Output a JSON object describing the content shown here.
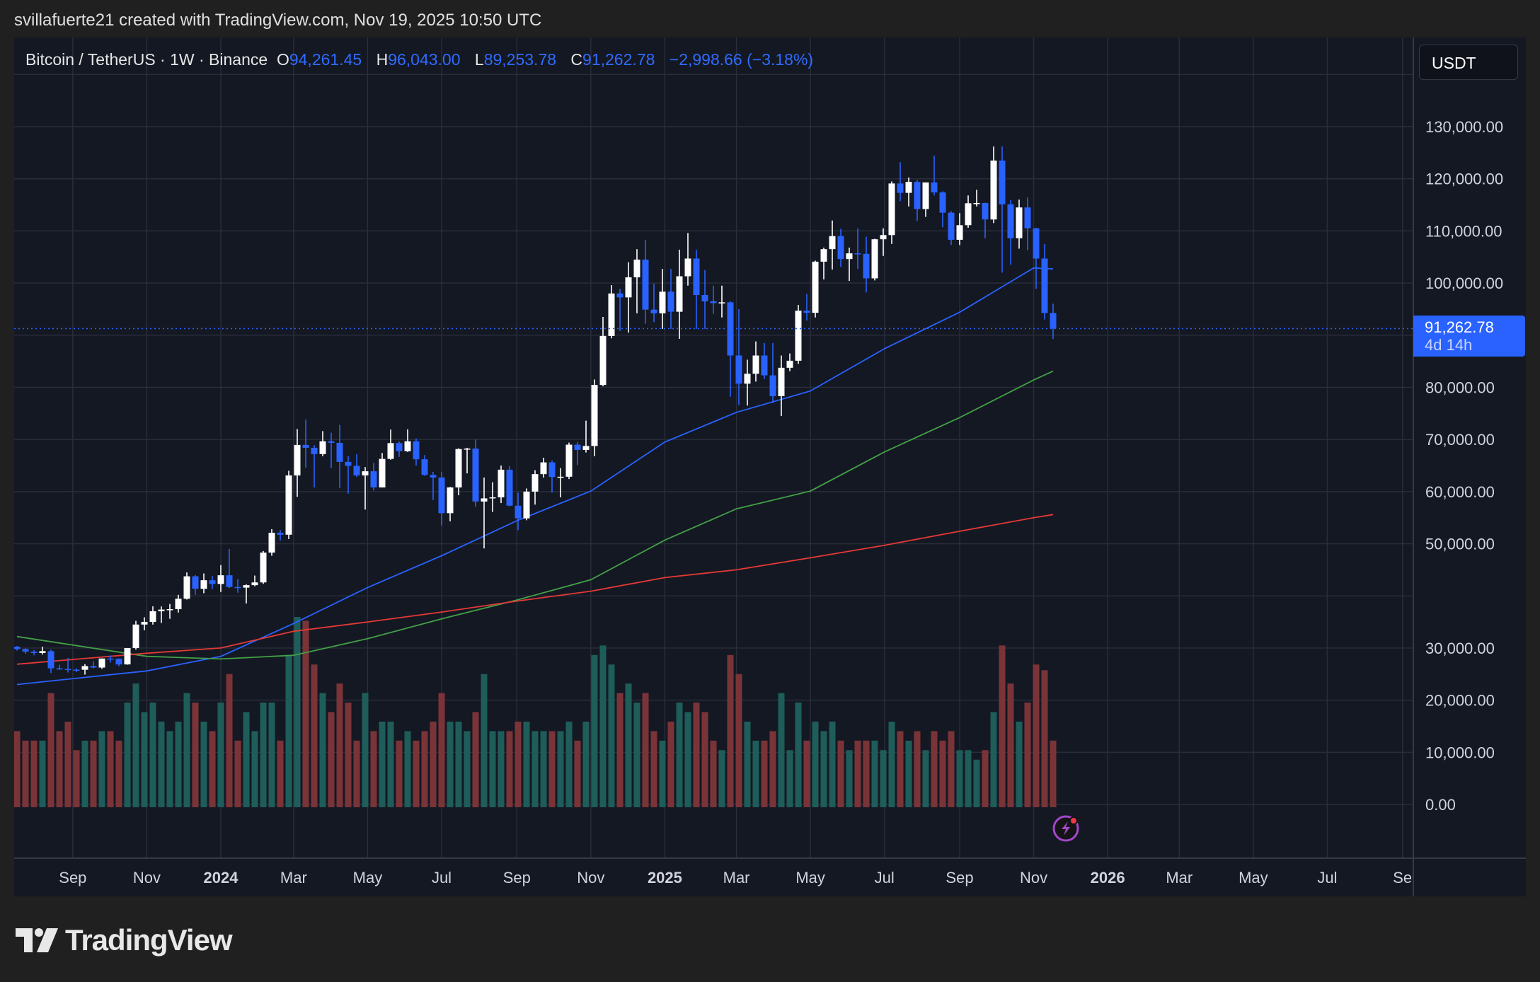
{
  "credit": "svillafuerte21 created with TradingView.com, Nov 19, 2025 10:50 UTC",
  "legend": {
    "symbol": "Bitcoin / TetherUS · 1W · Binance",
    "o_label": "O",
    "o": "94,261.45",
    "h_label": "H",
    "h": "96,043.00",
    "l_label": "L",
    "l": "89,253.78",
    "c_label": "C",
    "c": "91,262.78",
    "change": "−2,998.66 (−3.18%)"
  },
  "currency_button": "USDT",
  "last_price": {
    "value": "91,262.78",
    "countdown": "4d 14h",
    "price": 91262.78
  },
  "brand": "TradingView",
  "colors": {
    "up": "#ffffff",
    "down": "#2962ff",
    "vol_up": "#1e5d59",
    "vol_down": "#7a3438",
    "ma_fast": "#2962ff",
    "ma_mid": "#43a047",
    "ma_slow": "#e53935",
    "background": "#141823",
    "grid": "#2a2e3b"
  },
  "chart_data": {
    "type": "candlestick",
    "interval": "1W",
    "ylim": [
      0,
      140000
    ],
    "grid": true,
    "y_ticks": [
      0,
      10000,
      20000,
      30000,
      40000,
      50000,
      60000,
      70000,
      80000,
      90000,
      100000,
      110000,
      120000,
      130000
    ],
    "y_tick_labels": [
      "0.00",
      "10,000.00",
      "20,000.00",
      "30,000.00",
      "",
      "50,000.00",
      "60,000.00",
      "70,000.00",
      "80,000.00",
      "",
      "100,000.00",
      "110,000.00",
      "120,000.00",
      "130,000.00"
    ],
    "x_ticks": [
      {
        "date": "2023-09-01",
        "label": "Sep"
      },
      {
        "date": "2023-11-01",
        "label": "Nov"
      },
      {
        "date": "2024-01-01",
        "label": "2024",
        "bold": true
      },
      {
        "date": "2024-03-01",
        "label": "Mar"
      },
      {
        "date": "2024-05-01",
        "label": "May"
      },
      {
        "date": "2024-07-01",
        "label": "Jul"
      },
      {
        "date": "2024-09-01",
        "label": "Sep"
      },
      {
        "date": "2024-11-01",
        "label": "Nov"
      },
      {
        "date": "2025-01-01",
        "label": "2025",
        "bold": true
      },
      {
        "date": "2025-03-01",
        "label": "Mar"
      },
      {
        "date": "2025-05-01",
        "label": "May"
      },
      {
        "date": "2025-07-01",
        "label": "Jul"
      },
      {
        "date": "2025-09-01",
        "label": "Sep"
      },
      {
        "date": "2025-11-01",
        "label": "Nov"
      },
      {
        "date": "2026-01-01",
        "label": "2026",
        "bold": true
      },
      {
        "date": "2026-03-01",
        "label": "Mar"
      },
      {
        "date": "2026-05-01",
        "label": "May"
      },
      {
        "date": "2026-07-01",
        "label": "Jul"
      },
      {
        "date": "2026-09-01",
        "label": "Se"
      }
    ],
    "candle_fields": [
      "date",
      "open",
      "high",
      "low",
      "close",
      "volume_relative"
    ],
    "candles": [
      [
        "2023-07-17",
        30250,
        30400,
        29500,
        29800,
        40
      ],
      [
        "2023-07-24",
        29800,
        29950,
        28900,
        29300,
        35
      ],
      [
        "2023-07-31",
        29300,
        29600,
        28600,
        29050,
        35
      ],
      [
        "2023-08-07",
        29050,
        30250,
        28750,
        29400,
        35
      ],
      [
        "2023-08-14",
        29400,
        29700,
        25200,
        26100,
        60
      ],
      [
        "2023-08-21",
        26100,
        26800,
        25800,
        26000,
        40
      ],
      [
        "2023-08-28",
        26000,
        28100,
        25300,
        25850,
        45
      ],
      [
        "2023-09-04",
        25850,
        26100,
        25400,
        25830,
        30
      ],
      [
        "2023-09-11",
        25830,
        26900,
        24900,
        26530,
        35
      ],
      [
        "2023-09-18",
        26530,
        27450,
        26100,
        26250,
        35
      ],
      [
        "2023-09-25",
        26250,
        28000,
        26000,
        27980,
        40
      ],
      [
        "2023-10-02",
        27980,
        28600,
        27200,
        27930,
        40
      ],
      [
        "2023-10-09",
        27930,
        28000,
        26500,
        26850,
        35
      ],
      [
        "2023-10-16",
        26850,
        30000,
        26800,
        29990,
        55
      ],
      [
        "2023-10-23",
        29990,
        35200,
        29700,
        34500,
        65
      ],
      [
        "2023-10-30",
        34500,
        35900,
        33400,
        35000,
        50
      ],
      [
        "2023-11-06",
        35000,
        38000,
        34500,
        37050,
        55
      ],
      [
        "2023-11-13",
        37050,
        37980,
        34800,
        37370,
        45
      ],
      [
        "2023-11-20",
        37370,
        38450,
        35600,
        37450,
        40
      ],
      [
        "2023-11-27",
        37450,
        40200,
        36800,
        39450,
        45
      ],
      [
        "2023-12-04",
        39450,
        44500,
        39300,
        43750,
        60
      ],
      [
        "2023-12-11",
        43750,
        44000,
        40200,
        41350,
        55
      ],
      [
        "2023-12-18",
        41350,
        44300,
        40500,
        43000,
        45
      ],
      [
        "2023-12-25",
        43000,
        43800,
        41300,
        42280,
        40
      ],
      [
        "2024-01-01",
        42280,
        45900,
        40750,
        43950,
        55
      ],
      [
        "2024-01-08",
        43950,
        49000,
        41500,
        41700,
        70
      ],
      [
        "2024-01-15",
        41700,
        43200,
        40600,
        41580,
        35
      ],
      [
        "2024-01-22",
        41580,
        42200,
        38550,
        42050,
        50
      ],
      [
        "2024-01-29",
        42050,
        43900,
        41850,
        42580,
        40
      ],
      [
        "2024-02-05",
        42580,
        48600,
        42300,
        48300,
        55
      ],
      [
        "2024-02-12",
        48300,
        52800,
        47700,
        52100,
        55
      ],
      [
        "2024-02-19",
        52100,
        52600,
        50600,
        51730,
        35
      ],
      [
        "2024-02-26",
        51730,
        64000,
        50900,
        63100,
        80
      ],
      [
        "2024-03-04",
        63100,
        72000,
        59000,
        68950,
        100
      ],
      [
        "2024-03-11",
        68950,
        73800,
        64600,
        68400,
        98
      ],
      [
        "2024-03-18",
        68400,
        68900,
        60800,
        67200,
        75
      ],
      [
        "2024-03-25",
        67200,
        71600,
        66800,
        69650,
        60
      ],
      [
        "2024-04-01",
        69650,
        71300,
        64500,
        69350,
        50
      ],
      [
        "2024-04-08",
        69350,
        72800,
        60700,
        65700,
        65
      ],
      [
        "2024-04-15",
        65700,
        66800,
        59600,
        64940,
        55
      ],
      [
        "2024-04-22",
        64940,
        67200,
        62800,
        63100,
        35
      ],
      [
        "2024-04-29",
        63100,
        64700,
        56550,
        63900,
        60
      ],
      [
        "2024-05-06",
        63900,
        65500,
        60200,
        60800,
        40
      ],
      [
        "2024-05-13",
        60800,
        67400,
        60800,
        66270,
        45
      ],
      [
        "2024-05-20",
        66270,
        71900,
        66100,
        69300,
        45
      ],
      [
        "2024-05-27",
        69300,
        69600,
        66650,
        67750,
        35
      ],
      [
        "2024-06-03",
        67750,
        71950,
        67600,
        69650,
        40
      ],
      [
        "2024-06-10",
        69650,
        70200,
        65000,
        66200,
        35
      ],
      [
        "2024-06-17",
        66200,
        67000,
        63000,
        63200,
        40
      ],
      [
        "2024-06-24",
        63200,
        63800,
        58400,
        62700,
        45
      ],
      [
        "2024-07-01",
        62700,
        63800,
        53500,
        55860,
        60
      ],
      [
        "2024-07-08",
        55860,
        60900,
        54300,
        60800,
        45
      ],
      [
        "2024-07-15",
        60800,
        68300,
        59300,
        68160,
        45
      ],
      [
        "2024-07-22",
        68160,
        68400,
        63500,
        68250,
        40
      ],
      [
        "2024-07-29",
        68250,
        70000,
        57100,
        58100,
        50
      ],
      [
        "2024-08-05",
        58100,
        62700,
        49100,
        58700,
        70
      ],
      [
        "2024-08-12",
        58700,
        61800,
        56100,
        58900,
        40
      ],
      [
        "2024-08-19",
        58900,
        65000,
        57800,
        64200,
        40
      ],
      [
        "2024-08-26",
        64200,
        64900,
        57200,
        57300,
        40
      ],
      [
        "2024-09-02",
        57300,
        59800,
        52600,
        54870,
        45
      ],
      [
        "2024-09-09",
        54870,
        60600,
        54500,
        60000,
        45
      ],
      [
        "2024-09-16",
        60000,
        64100,
        57500,
        63350,
        40
      ],
      [
        "2024-09-23",
        63350,
        66500,
        62700,
        65600,
        40
      ],
      [
        "2024-09-30",
        65600,
        66000,
        59800,
        62800,
        40
      ],
      [
        "2024-10-07",
        62800,
        64500,
        58900,
        62850,
        40
      ],
      [
        "2024-10-14",
        62850,
        69400,
        62400,
        69000,
        45
      ],
      [
        "2024-10-21",
        69000,
        69500,
        65100,
        68000,
        35
      ],
      [
        "2024-10-28",
        68000,
        73600,
        67500,
        68750,
        45
      ],
      [
        "2024-11-04",
        68750,
        81500,
        66800,
        80450,
        80
      ],
      [
        "2024-11-11",
        80450,
        93500,
        80200,
        89850,
        85
      ],
      [
        "2024-11-18",
        89850,
        99600,
        89400,
        98000,
        75
      ],
      [
        "2024-11-25",
        98000,
        98900,
        90800,
        97250,
        60
      ],
      [
        "2024-12-02",
        97250,
        104000,
        90500,
        101100,
        65
      ],
      [
        "2024-12-09",
        101100,
        106500,
        94200,
        104500,
        55
      ],
      [
        "2024-12-16",
        104500,
        108300,
        92200,
        94900,
        60
      ],
      [
        "2024-12-23",
        94900,
        99900,
        92500,
        94200,
        40
      ],
      [
        "2024-12-30",
        94200,
        102700,
        91200,
        98350,
        35
      ],
      [
        "2025-01-06",
        98350,
        102700,
        91200,
        94500,
        45
      ],
      [
        "2025-01-13",
        94500,
        106400,
        89300,
        101300,
        55
      ],
      [
        "2025-01-20",
        101300,
        109600,
        99500,
        104700,
        50
      ],
      [
        "2025-01-27",
        104700,
        106400,
        91200,
        97700,
        55
      ],
      [
        "2025-02-03",
        97700,
        102500,
        91200,
        96500,
        50
      ],
      [
        "2025-02-10",
        96500,
        99500,
        94100,
        96150,
        35
      ],
      [
        "2025-02-17",
        96150,
        99500,
        93400,
        96300,
        30
      ],
      [
        "2025-02-24",
        96300,
        96500,
        78200,
        86100,
        80
      ],
      [
        "2025-03-03",
        86100,
        95000,
        76600,
        80700,
        70
      ],
      [
        "2025-03-10",
        80700,
        85300,
        76500,
        82600,
        45
      ],
      [
        "2025-03-17",
        82600,
        88800,
        81100,
        86100,
        35
      ],
      [
        "2025-03-24",
        86100,
        88500,
        81600,
        82300,
        35
      ],
      [
        "2025-03-31",
        82300,
        88500,
        77000,
        78300,
        40
      ],
      [
        "2025-04-07",
        78300,
        86100,
        74500,
        83750,
        60
      ],
      [
        "2025-04-14",
        83750,
        86500,
        83100,
        85100,
        30
      ],
      [
        "2025-04-21",
        85100,
        95800,
        84500,
        94700,
        55
      ],
      [
        "2025-04-28",
        94700,
        97900,
        92800,
        94300,
        35
      ],
      [
        "2025-05-05",
        94300,
        104300,
        93400,
        104100,
        45
      ],
      [
        "2025-05-12",
        104100,
        106800,
        100700,
        106500,
        40
      ],
      [
        "2025-05-19",
        106500,
        112000,
        102600,
        109000,
        45
      ],
      [
        "2025-05-26",
        109000,
        110400,
        103100,
        104600,
        35
      ],
      [
        "2025-06-02",
        104600,
        106800,
        100400,
        105700,
        30
      ],
      [
        "2025-06-09",
        105700,
        110500,
        102700,
        105600,
        35
      ],
      [
        "2025-06-16",
        105600,
        108900,
        98200,
        100900,
        35
      ],
      [
        "2025-06-23",
        100900,
        108500,
        100500,
        108400,
        35
      ],
      [
        "2025-06-30",
        108400,
        110500,
        105200,
        109200,
        30
      ],
      [
        "2025-07-07",
        109200,
        119500,
        107500,
        119100,
        45
      ],
      [
        "2025-07-14",
        119100,
        123200,
        115700,
        117300,
        40
      ],
      [
        "2025-07-21",
        117300,
        120250,
        114700,
        119400,
        35
      ],
      [
        "2025-07-28",
        119400,
        119800,
        111900,
        114200,
        40
      ],
      [
        "2025-08-04",
        114200,
        119300,
        112700,
        119300,
        30
      ],
      [
        "2025-08-11",
        119300,
        124450,
        116800,
        117400,
        40
      ],
      [
        "2025-08-18",
        117400,
        117600,
        110700,
        113500,
        35
      ],
      [
        "2025-08-25",
        113500,
        113800,
        107300,
        108300,
        40
      ],
      [
        "2025-09-01",
        108300,
        113400,
        107300,
        111100,
        30
      ],
      [
        "2025-09-08",
        111100,
        116800,
        110600,
        115300,
        30
      ],
      [
        "2025-09-15",
        115300,
        117900,
        114700,
        115350,
        25
      ],
      [
        "2025-09-22",
        115350,
        115400,
        108600,
        112200,
        30
      ],
      [
        "2025-09-29",
        112200,
        126200,
        111500,
        123500,
        50
      ],
      [
        "2025-10-06",
        123500,
        126200,
        102000,
        115100,
        85
      ],
      [
        "2025-10-13",
        115100,
        115900,
        103500,
        108600,
        65
      ],
      [
        "2025-10-20",
        108600,
        116000,
        106600,
        114500,
        45
      ],
      [
        "2025-10-27",
        114500,
        116400,
        106300,
        110500,
        55
      ],
      [
        "2025-11-03",
        110500,
        110600,
        98900,
        104700,
        75
      ],
      [
        "2025-11-10",
        104700,
        107500,
        93000,
        94250,
        72
      ],
      [
        "2025-11-17",
        94261.45,
        96043,
        89253.78,
        91262.78,
        35
      ]
    ],
    "moving_averages": [
      {
        "color_key": "ma_fast",
        "points": [
          [
            "2023-07-17",
            23000
          ],
          [
            "2023-11-01",
            25600
          ],
          [
            "2024-01-01",
            28400
          ],
          [
            "2024-03-01",
            34700
          ],
          [
            "2024-05-01",
            41600
          ],
          [
            "2024-07-01",
            47700
          ],
          [
            "2024-09-01",
            54400
          ],
          [
            "2024-11-01",
            60100
          ],
          [
            "2025-01-01",
            69500
          ],
          [
            "2025-03-01",
            75200
          ],
          [
            "2025-05-01",
            79300
          ],
          [
            "2025-07-01",
            87400
          ],
          [
            "2025-09-01",
            94400
          ],
          [
            "2025-11-01",
            102900
          ],
          [
            "2025-11-17",
            102700
          ]
        ]
      },
      {
        "color_key": "ma_mid",
        "points": [
          [
            "2023-07-17",
            32200
          ],
          [
            "2023-11-01",
            28400
          ],
          [
            "2024-01-01",
            27900
          ],
          [
            "2024-03-01",
            28600
          ],
          [
            "2024-05-01",
            31800
          ],
          [
            "2024-07-01",
            35600
          ],
          [
            "2024-09-01",
            39200
          ],
          [
            "2024-11-01",
            43100
          ],
          [
            "2025-01-01",
            50700
          ],
          [
            "2025-03-01",
            56700
          ],
          [
            "2025-05-01",
            60100
          ],
          [
            "2025-07-01",
            67600
          ],
          [
            "2025-09-01",
            74200
          ],
          [
            "2025-11-01",
            81400
          ],
          [
            "2025-11-17",
            83100
          ]
        ]
      },
      {
        "color_key": "ma_slow",
        "points": [
          [
            "2023-07-17",
            26900
          ],
          [
            "2023-11-01",
            29000
          ],
          [
            "2024-01-01",
            30000
          ],
          [
            "2024-03-01",
            33200
          ],
          [
            "2024-05-01",
            35000
          ],
          [
            "2024-07-01",
            36900
          ],
          [
            "2024-09-01",
            39000
          ],
          [
            "2024-11-01",
            40900
          ],
          [
            "2025-01-01",
            43500
          ],
          [
            "2025-03-01",
            45000
          ],
          [
            "2025-05-01",
            47300
          ],
          [
            "2025-07-01",
            49700
          ],
          [
            "2025-09-01",
            52400
          ],
          [
            "2025-11-01",
            55000
          ],
          [
            "2025-11-17",
            55600
          ]
        ]
      }
    ]
  }
}
